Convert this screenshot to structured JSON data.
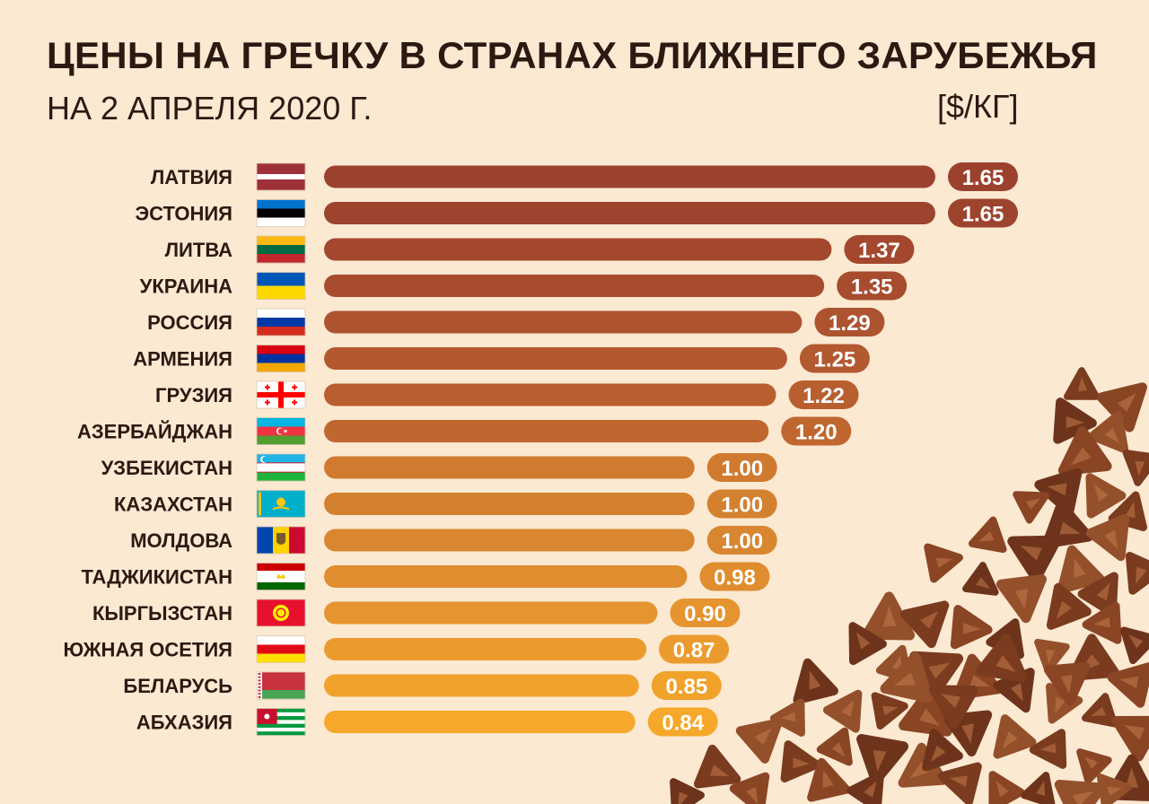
{
  "header": {
    "title": "ЦЕНЫ НА ГРЕЧКУ В СТРАНАХ БЛИЖНЕГО ЗАРУБЕЖЬЯ",
    "subtitle": "НА 2 АПРЕЛЯ 2020 Г.",
    "unit": "[$/КГ]"
  },
  "chart_data": {
    "type": "bar",
    "orientation": "horizontal",
    "title": "ЦЕНЫ НА ГРЕЧКУ В СТРАНАХ БЛИЖНЕГО ЗАРУБЕЖЬЯ",
    "subtitle": "НА 2 АПРЕЛЯ 2020 Г.",
    "unit": "[$/КГ]",
    "xlim": [
      0,
      1.65
    ],
    "grid": false,
    "legend": "none",
    "categories": [
      "ЛАТВИЯ",
      "ЭСТОНИЯ",
      "ЛИТВА",
      "УКРАИНА",
      "РОССИЯ",
      "АРМЕНИЯ",
      "ГРУЗИЯ",
      "АЗЕРБАЙДЖАН",
      "УЗБЕКИСТАН",
      "КАЗАХСТАН",
      "МОЛДОВА",
      "ТАДЖИКИСТАН",
      "КЫРГЫЗСТАН",
      "ЮЖНАЯ ОСЕТИЯ",
      "БЕЛАРУСЬ",
      "АБХАЗИЯ"
    ],
    "values": [
      1.65,
      1.65,
      1.37,
      1.35,
      1.29,
      1.25,
      1.22,
      1.2,
      1.0,
      1.0,
      1.0,
      0.98,
      0.9,
      0.87,
      0.85,
      0.84
    ],
    "value_labels": [
      "1.65",
      "1.65",
      "1.37",
      "1.35",
      "1.29",
      "1.25",
      "1.22",
      "1.20",
      "1.00",
      "1.00",
      "1.00",
      "0.98",
      "0.90",
      "0.87",
      "0.85",
      "0.84"
    ],
    "flags": [
      "latvia-flag",
      "estonia-flag",
      "lithuania-flag",
      "ukraine-flag",
      "russia-flag",
      "armenia-flag",
      "georgia-flag",
      "azerbaijan-flag",
      "uzbekistan-flag",
      "kazakhstan-flag",
      "moldova-flag",
      "tajikistan-flag",
      "kyrgyzstan-flag",
      "south-ossetia-flag",
      "belarus-flag",
      "abkhazia-flag"
    ],
    "colors": [
      "#9b422e",
      "#9d442e",
      "#a3482e",
      "#a74c2e",
      "#ad532f",
      "#b3592f",
      "#b95f2f",
      "#c0672f",
      "#d07a2f",
      "#d4812f",
      "#d8862f",
      "#df8d2f",
      "#e5942f",
      "#eb9b2d",
      "#f0a22b",
      "#f5a829"
    ]
  }
}
